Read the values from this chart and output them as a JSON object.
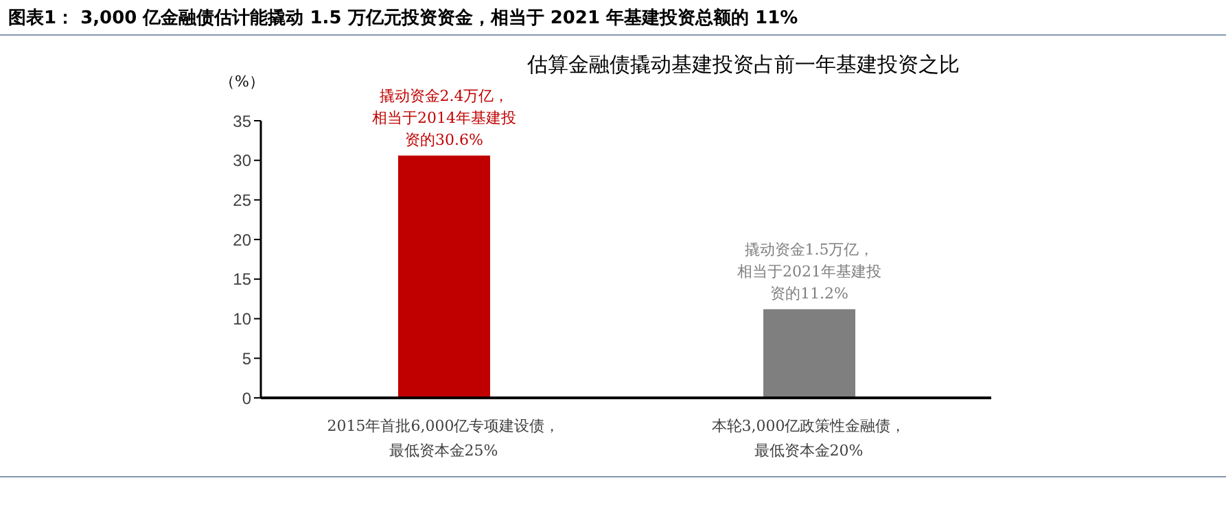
{
  "chart_data": {
    "type": "bar",
    "title": "图表1： 3,000 亿金融债估计能撬动 1.5 万亿元投资资金，相当于 2021 年基建投资总额的 11%",
    "subtitle": "估算金融债撬动基建投资占前一年基建投资之比",
    "ylabel": "（%）",
    "categories": [
      "2015年首批6,000亿专项建设债，最低资本金25%",
      "本轮3,000亿政策性金融债，最低资本金20%"
    ],
    "values": [
      30.6,
      11.2
    ],
    "colors": [
      "#c00000",
      "#7f7f7f"
    ],
    "ylim": [
      0,
      35
    ],
    "yticks": [
      0,
      5,
      10,
      15,
      20,
      25,
      30,
      35
    ],
    "grid": false,
    "legend": false,
    "annotations": [
      {
        "text": "撬动资金2.4万亿，相当于2014年基建投资的30.6%",
        "x": "2015年首批6,000亿专项建设债，最低资本金25%",
        "y": 30.6
      },
      {
        "text": "撬动资金1.5万亿，相当于2021年基建投资的11.2%",
        "x": "本轮3,000亿政策性金融债，最低资本金20%",
        "y": 11.2
      }
    ]
  }
}
